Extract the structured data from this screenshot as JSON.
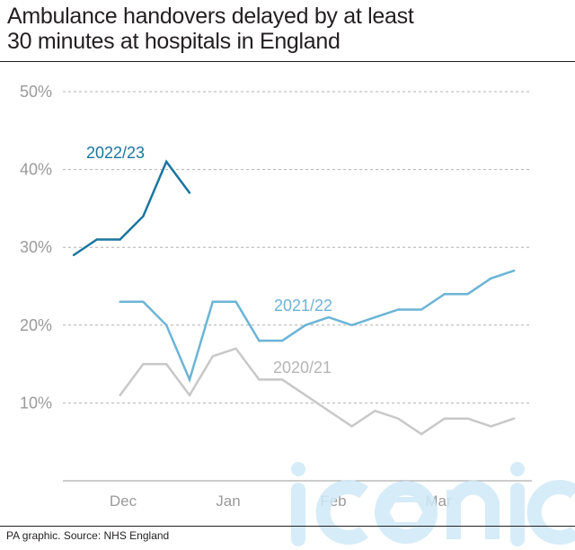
{
  "title_lines": [
    "Ambulance handovers delayed by at least",
    "30 minutes at hospitals in England"
  ],
  "source": "PA graphic. Source: NHS England",
  "watermark_text": "iconic",
  "colors": {
    "s2022": "#1a75a0",
    "s2021": "#6cb4d6",
    "s2020": "#c8c8c8",
    "grid": "#b0b0b0",
    "ticks": "#9a9a9a"
  },
  "chart_data": {
    "type": "line",
    "title": "Ambulance handovers delayed by at least 30 minutes at hospitals in England",
    "ylim": [
      0,
      50
    ],
    "yticks": [
      10,
      20,
      30,
      40,
      50
    ],
    "ytick_labels": [
      "10%",
      "20%",
      "30%",
      "40%",
      "50%"
    ],
    "xtick_labels": [
      "Dec",
      "Jan",
      "Feb",
      "Mar"
    ],
    "x_week_range": [
      0,
      20
    ],
    "grid": "horizontal dashed",
    "series": [
      {
        "name": "2022/23",
        "color": "#1a75a0",
        "weeks": [
          0,
          1,
          2,
          3,
          4,
          5
        ],
        "values": [
          29,
          31,
          31,
          34,
          41,
          37
        ]
      },
      {
        "name": "2021/22",
        "color": "#6cb4d6",
        "weeks": [
          2,
          3,
          4,
          5,
          6,
          7,
          8,
          9,
          10,
          11,
          12,
          13,
          14,
          15,
          16,
          17,
          18,
          19
        ],
        "values": [
          23,
          23,
          20,
          13,
          23,
          23,
          18,
          18,
          20,
          21,
          20,
          21,
          22,
          22,
          24,
          24,
          26,
          27
        ]
      },
      {
        "name": "2020/21",
        "color": "#c8c8c8",
        "weeks": [
          2,
          3,
          4,
          5,
          6,
          7,
          8,
          9,
          10,
          11,
          12,
          13,
          14,
          15,
          16,
          17,
          18,
          19
        ],
        "values": [
          11,
          15,
          15,
          11,
          16,
          17,
          13,
          13,
          11,
          9,
          7,
          9,
          8,
          6,
          8,
          8,
          7,
          8
        ]
      }
    ]
  }
}
